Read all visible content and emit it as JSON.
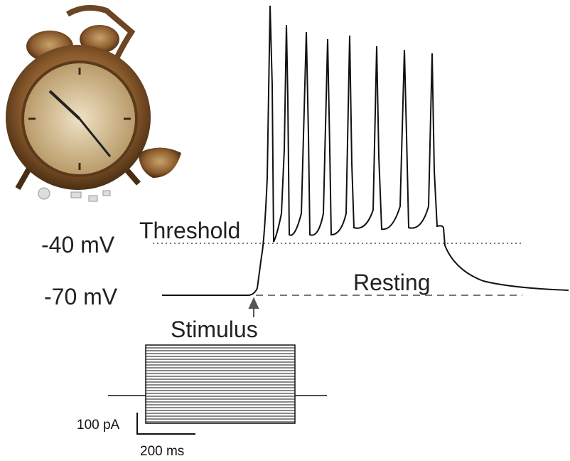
{
  "labels": {
    "threshold_value": "-40 mV",
    "resting_value": "-70 mV",
    "threshold": "Threshold",
    "resting": "Resting",
    "stimulus": "Stimulus"
  },
  "scale_bar": {
    "current": "100 pA",
    "time": "200 ms"
  }
}
